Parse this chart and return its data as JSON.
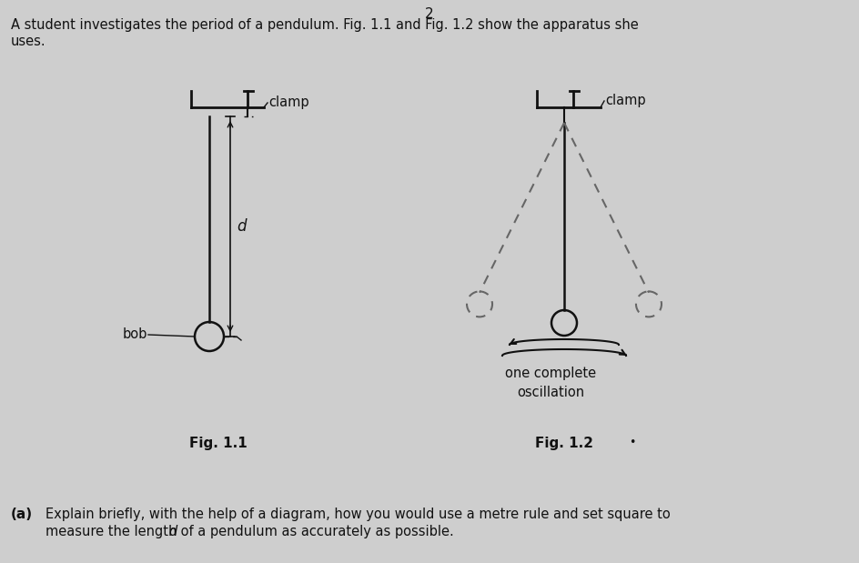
{
  "bg_color": "#cecece",
  "page_num": "2",
  "header_line1": "A student investigates the period of a pendulum. Fig. 1.1 and Fig. 1.2 show the apparatus she",
  "header_line2": "uses.",
  "fig1_label": "Fig. 1.1",
  "fig2_label": "Fig. 1.2",
  "clamp_label1": "clamp",
  "clamp_label2": "clamp",
  "bob_label": "bob",
  "d_label": "d",
  "one_complete_label": "one complete\noscillation",
  "q_part_a": "(a)",
  "q_line1": "Explain briefly, with the help of a diagram, how you would use a metre rule and set square to",
  "q_line2_pre": "measure the length ",
  "q_line2_d": "d",
  "q_line2_post": " of a pendulum as accurately as possible.",
  "line_color": "#111111",
  "dashed_color": "#666666"
}
